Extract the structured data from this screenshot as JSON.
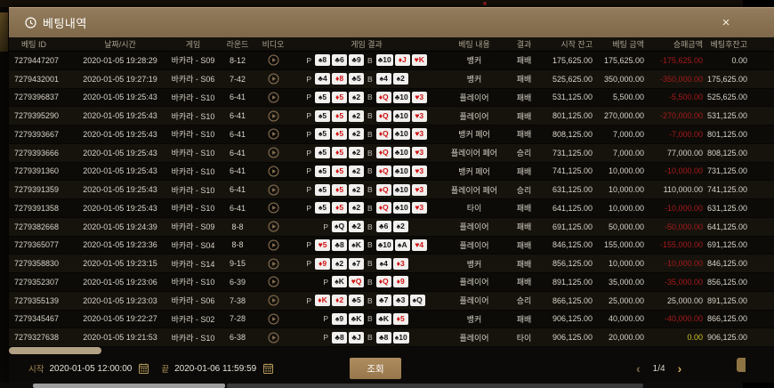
{
  "colors": {
    "header_tan": "#8a7355",
    "gold": "#b7995d",
    "negative_red": "#a61b1b",
    "zero_yellow": "#cbc324",
    "card_red": "#cf1212",
    "scroll_thumb": "#b3a185"
  },
  "modal": {
    "title": "베팅내역",
    "title_icon": "clock-icon",
    "close_icon": "×"
  },
  "table": {
    "p_label": "P",
    "b_label": "B",
    "video_icon": "play-circle-icon",
    "headers": [
      "베팅 ID",
      "날짜/시간",
      "게임",
      "라운드",
      "비디오",
      "게임 결과",
      "베팅 내용",
      "결과",
      "시작 잔고",
      "베팅 금액",
      "승패금액",
      "베팅후잔고"
    ],
    "rows": [
      {
        "id": "7279447207",
        "datetime": "2020-01-05 19:28:29",
        "game": "바카라 - S09",
        "round": "8-12",
        "p": [
          "♠8",
          "♣6",
          "♣9"
        ],
        "b": [
          "♣10",
          "♦J",
          "♥K"
        ],
        "bet": "뱅커",
        "outcome": "패배",
        "start": "175,625.00",
        "amount": "175,625.00",
        "winloss": "-175,625.00",
        "wl": "neg",
        "after": "0.00"
      },
      {
        "id": "7279432001",
        "datetime": "2020-01-05 19:27:19",
        "game": "바카라 - S06",
        "round": "7-42",
        "p": [
          "♣4",
          "♦8",
          "♣5"
        ],
        "b": [
          "♠4",
          "♠2"
        ],
        "bet": "뱅커",
        "outcome": "패배",
        "start": "525,625.00",
        "amount": "350,000.00",
        "winloss": "-350,000.00",
        "wl": "neg",
        "after": "175,625.00"
      },
      {
        "id": "7279396837",
        "datetime": "2020-01-05 19:25:43",
        "game": "바카라 - S10",
        "round": "6-41",
        "p": [
          "♠5",
          "♦5",
          "♠2"
        ],
        "b": [
          "♦Q",
          "♣10",
          "♥3"
        ],
        "bet": "플레이어",
        "outcome": "패배",
        "start": "531,125.00",
        "amount": "5,500.00",
        "winloss": "-5,500.00",
        "wl": "neg",
        "after": "525,625.00"
      },
      {
        "id": "7279395290",
        "datetime": "2020-01-05 19:25:43",
        "game": "바카라 - S10",
        "round": "6-41",
        "p": [
          "♠5",
          "♦5",
          "♠2"
        ],
        "b": [
          "♦Q",
          "♣10",
          "♥3"
        ],
        "bet": "플레이어",
        "outcome": "패배",
        "start": "801,125.00",
        "amount": "270,000.00",
        "winloss": "-270,000.00",
        "wl": "neg",
        "after": "531,125.00"
      },
      {
        "id": "7279393667",
        "datetime": "2020-01-05 19:25:43",
        "game": "바카라 - S10",
        "round": "6-41",
        "p": [
          "♠5",
          "♦5",
          "♠2"
        ],
        "b": [
          "♦Q",
          "♣10",
          "♥3"
        ],
        "bet": "뱅커 페어",
        "outcome": "패배",
        "start": "808,125.00",
        "amount": "7,000.00",
        "winloss": "-7,000.00",
        "wl": "neg",
        "after": "801,125.00"
      },
      {
        "id": "7279393666",
        "datetime": "2020-01-05 19:25:43",
        "game": "바카라 - S10",
        "round": "6-41",
        "p": [
          "♠5",
          "♦5",
          "♠2"
        ],
        "b": [
          "♦Q",
          "♣10",
          "♥3"
        ],
        "bet": "플레이어 페어",
        "outcome": "승리",
        "start": "731,125.00",
        "amount": "7,000.00",
        "winloss": "77,000.00",
        "wl": "pos",
        "after": "808,125.00"
      },
      {
        "id": "7279391360",
        "datetime": "2020-01-05 19:25:43",
        "game": "바카라 - S10",
        "round": "6-41",
        "p": [
          "♠5",
          "♦5",
          "♠2"
        ],
        "b": [
          "♦Q",
          "♣10",
          "♥3"
        ],
        "bet": "뱅커 페어",
        "outcome": "패배",
        "start": "741,125.00",
        "amount": "10,000.00",
        "winloss": "-10,000.00",
        "wl": "neg",
        "after": "731,125.00"
      },
      {
        "id": "7279391359",
        "datetime": "2020-01-05 19:25:43",
        "game": "바카라 - S10",
        "round": "6-41",
        "p": [
          "♠5",
          "♦5",
          "♠2"
        ],
        "b": [
          "♦Q",
          "♣10",
          "♥3"
        ],
        "bet": "플레이어 페어",
        "outcome": "승리",
        "start": "631,125.00",
        "amount": "10,000.00",
        "winloss": "110,000.00",
        "wl": "pos",
        "after": "741,125.00"
      },
      {
        "id": "7279391358",
        "datetime": "2020-01-05 19:25:43",
        "game": "바카라 - S10",
        "round": "6-41",
        "p": [
          "♠5",
          "♦5",
          "♠2"
        ],
        "b": [
          "♦Q",
          "♣10",
          "♥3"
        ],
        "bet": "타이",
        "outcome": "패배",
        "start": "641,125.00",
        "amount": "10,000.00",
        "winloss": "-10,000.00",
        "wl": "neg",
        "after": "631,125.00"
      },
      {
        "id": "7279382668",
        "datetime": "2020-01-05 19:24:39",
        "game": "바카라 - S09",
        "round": "8-8",
        "p": [
          "♠Q",
          "♣2"
        ],
        "b": [
          "♣6",
          "♠2"
        ],
        "bet": "플레이어",
        "outcome": "패배",
        "start": "691,125.00",
        "amount": "50,000.00",
        "winloss": "-50,000.00",
        "wl": "neg",
        "after": "641,125.00"
      },
      {
        "id": "7279365077",
        "datetime": "2020-01-05 19:23:36",
        "game": "바카라 - S04",
        "round": "8-8",
        "p": [
          "♥5",
          "♣8",
          "♠K"
        ],
        "b": [
          "♣10",
          "♠A",
          "♥4"
        ],
        "bet": "플레이어",
        "outcome": "패배",
        "start": "846,125.00",
        "amount": "155,000.00",
        "winloss": "-155,000.00",
        "wl": "neg",
        "after": "691,125.00"
      },
      {
        "id": "7279358830",
        "datetime": "2020-01-05 19:23:15",
        "game": "바카라 - S14",
        "round": "9-15",
        "p": [
          "♦9",
          "♠2",
          "♠7"
        ],
        "b": [
          "♠4",
          "♦3"
        ],
        "bet": "뱅커",
        "outcome": "패배",
        "start": "856,125.00",
        "amount": "10,000.00",
        "winloss": "-10,000.00",
        "wl": "neg",
        "after": "846,125.00"
      },
      {
        "id": "7279352307",
        "datetime": "2020-01-05 19:23:06",
        "game": "바카라 - S10",
        "round": "6-39",
        "p": [
          "♠K",
          "♥Q"
        ],
        "b": [
          "♦Q",
          "♦9"
        ],
        "bet": "플레이어",
        "outcome": "패배",
        "start": "891,125.00",
        "amount": "35,000.00",
        "winloss": "-35,000.00",
        "wl": "neg",
        "after": "856,125.00"
      },
      {
        "id": "7279355139",
        "datetime": "2020-01-05 19:23:03",
        "game": "바카라 - S06",
        "round": "7-38",
        "p": [
          "♦K",
          "♦2",
          "♣5"
        ],
        "b": [
          "♣7",
          "♣3",
          "♠Q"
        ],
        "bet": "플레이어",
        "outcome": "승리",
        "start": "866,125.00",
        "amount": "25,000.00",
        "winloss": "25,000.00",
        "wl": "pos",
        "after": "891,125.00"
      },
      {
        "id": "7279345467",
        "datetime": "2020-01-05 19:22:27",
        "game": "바카라 - S02",
        "round": "7-28",
        "p": [
          "♠9",
          "♣K"
        ],
        "b": [
          "♣K",
          "♦5"
        ],
        "bet": "뱅커",
        "outcome": "패배",
        "start": "906,125.00",
        "amount": "40,000.00",
        "winloss": "-40,000.00",
        "wl": "neg",
        "after": "866,125.00"
      },
      {
        "id": "7279327638",
        "datetime": "2020-01-05 19:21:53",
        "game": "바카라 - S10",
        "round": "6-38",
        "p": [
          "♣8",
          "♣J"
        ],
        "b": [
          "♣8",
          "♠10"
        ],
        "bet": "플레이어",
        "outcome": "타이",
        "start": "906,125.00",
        "amount": "20,000.00",
        "winloss": "0.00",
        "wl": "zero",
        "after": "906,125.00"
      }
    ]
  },
  "footer": {
    "start_label": "시작",
    "start_value": "2020-01-05 12:00:00",
    "end_label": "끝",
    "end_value": "2020-01-06 11:59:59",
    "calendar_icon": "calendar-icon",
    "search_button": "조회",
    "pagination": {
      "prev_icon": "‹",
      "page": "1/4",
      "next_icon": "›"
    }
  }
}
